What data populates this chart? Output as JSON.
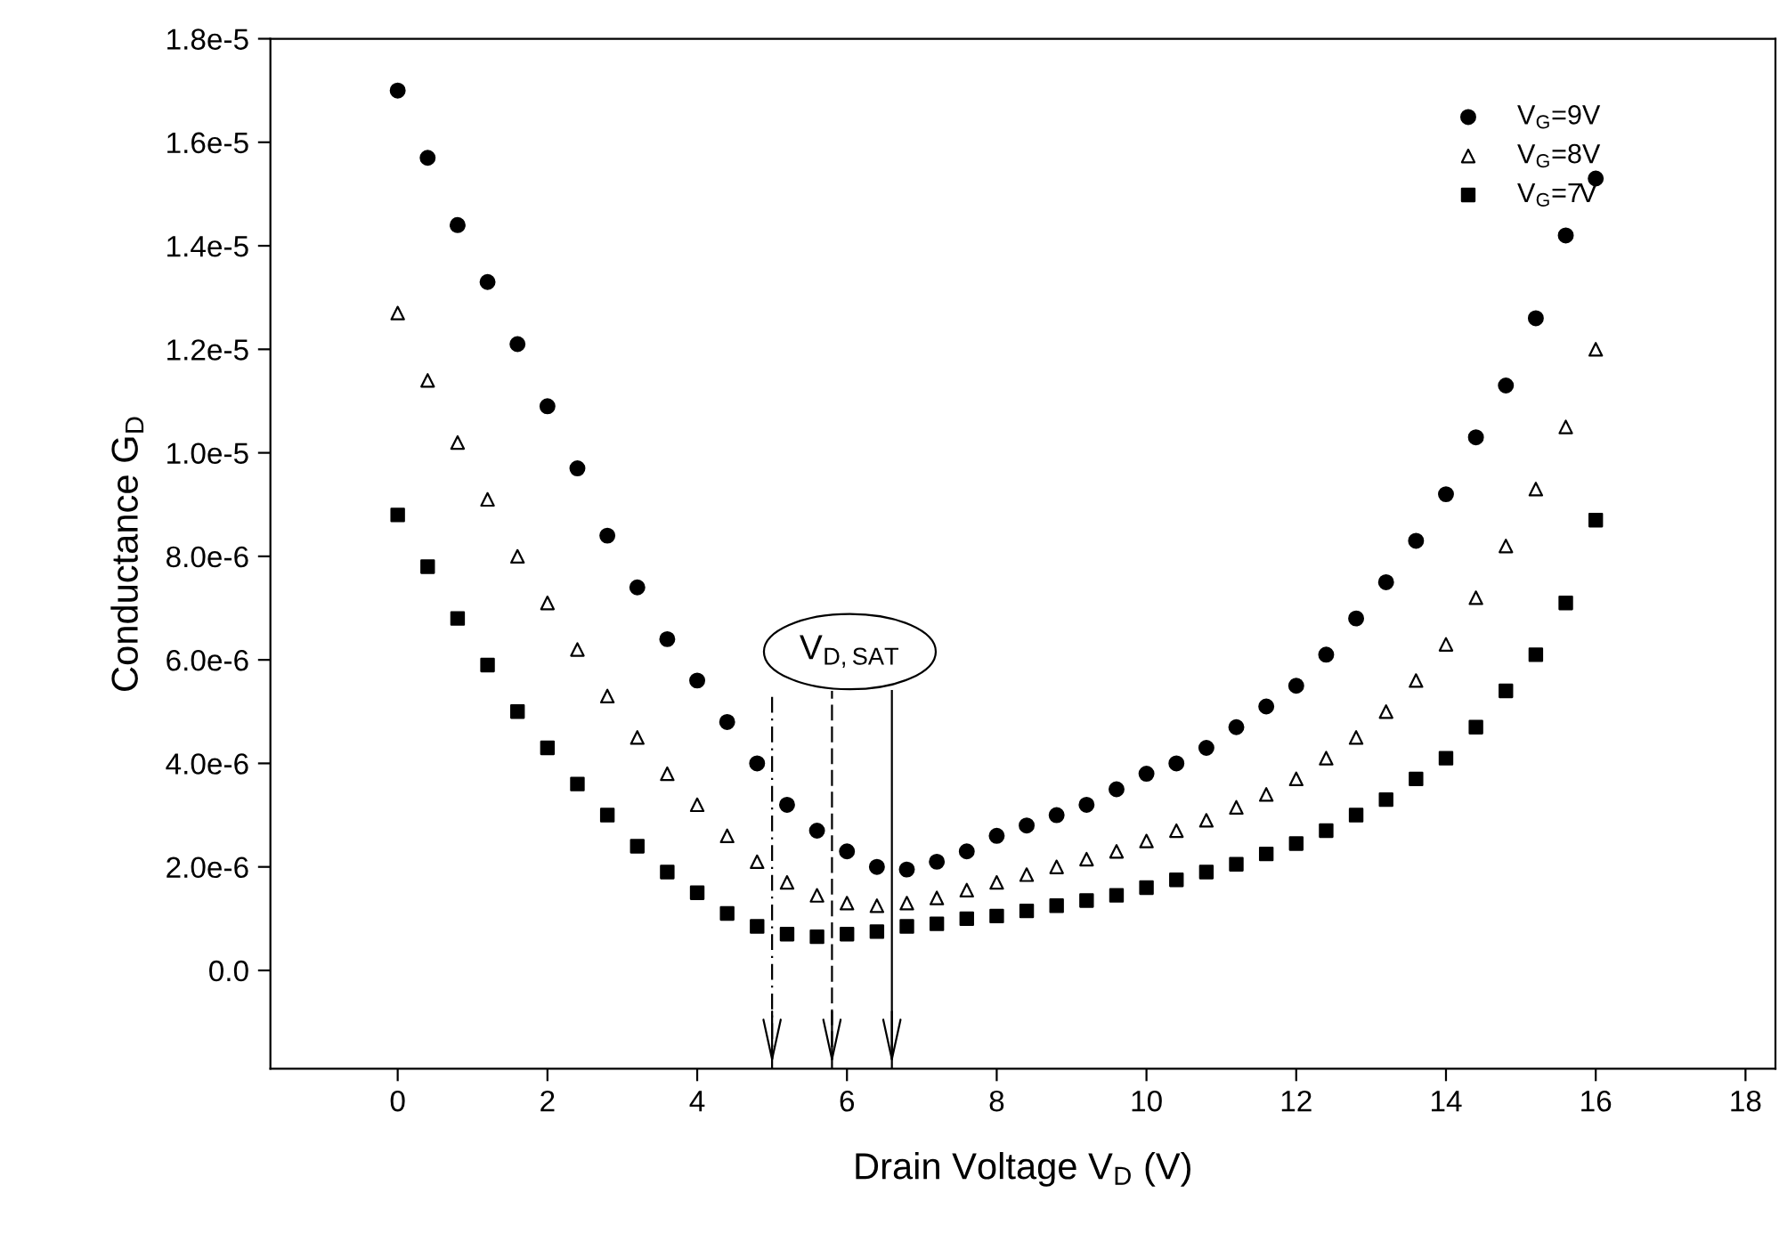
{
  "chart_data": {
    "type": "scatter",
    "xlabel": "Drain Voltage V$_{D}$ (V)",
    "ylabel": "Conductance G$_{D}$",
    "x": [
      0,
      0.4,
      0.8,
      1.2,
      1.6,
      2.0,
      2.4,
      2.8,
      3.2,
      3.6,
      4.0,
      4.4,
      4.8,
      5.2,
      5.6,
      6.0,
      6.4,
      6.8,
      7.2,
      7.6,
      8.0,
      8.4,
      8.8,
      9.2,
      9.6,
      10.0,
      10.4,
      10.8,
      11.2,
      11.6,
      12.0,
      12.4,
      12.8,
      13.2,
      13.6,
      14.0,
      14.4,
      14.8,
      15.2,
      15.6,
      16.0
    ],
    "series": [
      {
        "name": "V$_{G}$=9V",
        "color": "#000000",
        "marker": "circle",
        "values": [
          1.7e-05,
          1.57e-05,
          1.44e-05,
          1.33e-05,
          1.21e-05,
          1.09e-05,
          9.7e-06,
          8.4e-06,
          7.4e-06,
          6.4e-06,
          5.6e-06,
          4.8e-06,
          4e-06,
          3.2e-06,
          2.7e-06,
          2.3e-06,
          2e-06,
          1.95e-06,
          2.1e-06,
          2.3e-06,
          2.6e-06,
          2.8e-06,
          3e-06,
          3.2e-06,
          3.5e-06,
          3.8e-06,
          4e-06,
          4.3e-06,
          4.7e-06,
          5.1e-06,
          5.5e-06,
          6.1e-06,
          6.8e-06,
          7.5e-06,
          8.3e-06,
          9.2e-06,
          1.03e-05,
          1.13e-05,
          1.26e-05,
          1.42e-05,
          1.53e-05
        ]
      },
      {
        "name": "V$_{G}$=8V",
        "color": "#000000",
        "marker": "triangle",
        "values": [
          1.27e-05,
          1.14e-05,
          1.02e-05,
          9.1e-06,
          8e-06,
          7.1e-06,
          6.2e-06,
          5.3e-06,
          4.5e-06,
          3.8e-06,
          3.2e-06,
          2.6e-06,
          2.1e-06,
          1.7e-06,
          1.45e-06,
          1.3e-06,
          1.25e-06,
          1.3e-06,
          1.4e-06,
          1.55e-06,
          1.7e-06,
          1.85e-06,
          2e-06,
          2.15e-06,
          2.3e-06,
          2.5e-06,
          2.7e-06,
          2.9e-06,
          3.15e-06,
          3.4e-06,
          3.7e-06,
          4.1e-06,
          4.5e-06,
          5e-06,
          5.6e-06,
          6.3e-06,
          7.2e-06,
          8.2e-06,
          9.3e-06,
          1.05e-05,
          1.2e-05
        ]
      },
      {
        "name": "V$_{G}$=7V",
        "color": "#000000",
        "marker": "square",
        "values": [
          8.8e-06,
          7.8e-06,
          6.8e-06,
          5.9e-06,
          5e-06,
          4.3e-06,
          3.6e-06,
          3e-06,
          2.4e-06,
          1.9e-06,
          1.5e-06,
          1.1e-06,
          8.5e-07,
          7e-07,
          6.5e-07,
          7e-07,
          7.5e-07,
          8.5e-07,
          9e-07,
          1e-06,
          1.05e-06,
          1.15e-06,
          1.25e-06,
          1.35e-06,
          1.45e-06,
          1.6e-06,
          1.75e-06,
          1.9e-06,
          2.05e-06,
          2.25e-06,
          2.45e-06,
          2.7e-06,
          3e-06,
          3.3e-06,
          3.7e-06,
          4.1e-06,
          4.7e-06,
          5.4e-06,
          6.1e-06,
          7.1e-06,
          8.7e-06
        ]
      }
    ],
    "xlim": [
      -1.7,
      18.4
    ],
    "xticks": [
      0,
      2,
      4,
      6,
      8,
      10,
      12,
      14,
      16,
      18
    ],
    "ylim": [
      -1.9e-06,
      1.8e-05
    ],
    "yticks": [
      {
        "value": 0,
        "label": "0.0"
      },
      {
        "value": 2e-06,
        "label": "2.0e-6"
      },
      {
        "value": 4e-06,
        "label": "4.0e-6"
      },
      {
        "value": 6e-06,
        "label": "6.0e-6"
      },
      {
        "value": 8e-06,
        "label": "8.0e-6"
      },
      {
        "value": 1e-05,
        "label": "1.0e-5"
      },
      {
        "value": 1.2e-05,
        "label": "1.2e-5"
      },
      {
        "value": 1.4e-05,
        "label": "1.4e-5"
      },
      {
        "value": 1.6e-05,
        "label": "1.6e-5"
      },
      {
        "value": 1.8e-05,
        "label": "1.8e-5"
      }
    ],
    "annotations": [
      "V$_{D,SAT}$"
    ],
    "ref_lines": [
      {
        "axis": "x",
        "value": 5.0,
        "line_style": "dashdot"
      },
      {
        "axis": "x",
        "value": 5.8,
        "line_style": "dashed"
      },
      {
        "axis": "x",
        "value": 6.6,
        "line_style": "solid"
      }
    ],
    "legend": "top right",
    "grid": false
  }
}
